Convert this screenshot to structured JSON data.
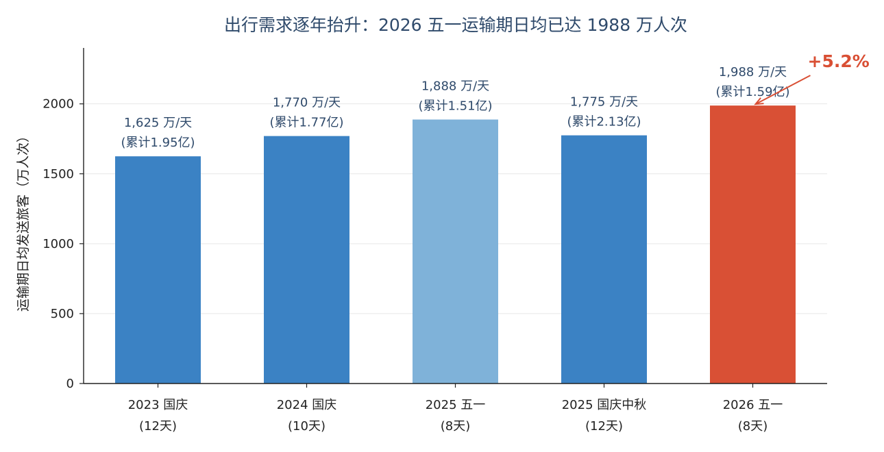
{
  "chart_data": {
    "type": "bar",
    "title": "出行需求逐年抬升：2026 五一运输期日均已达 1988 万人次",
    "ylabel": "运输期日均发送旅客（万人次）",
    "xlabel": "",
    "ylim": [
      0,
      2400
    ],
    "yticks": [
      "0",
      "500",
      "1000",
      "1500",
      "2000"
    ],
    "ytick_values": [
      0,
      500,
      1000,
      1500,
      2000
    ],
    "grid": true,
    "categories": [
      {
        "line1": "2023 国庆",
        "line2": "(12天)"
      },
      {
        "line1": "2024 国庆",
        "line2": "(10天)"
      },
      {
        "line1": "2025 五一",
        "line2": "(8天)"
      },
      {
        "line1": "2025 国庆中秋",
        "line2": "(12天)"
      },
      {
        "line1": "2026 五一",
        "line2": "(8天)"
      }
    ],
    "values": [
      1625,
      1770,
      1888,
      1775,
      1988
    ],
    "labels": [
      {
        "daily": "1,625 万/天",
        "total": "(累计1.95亿)"
      },
      {
        "daily": "1,770 万/天",
        "total": "(累计1.77亿)"
      },
      {
        "daily": "1,888 万/天",
        "total": "(累计1.51亿)"
      },
      {
        "daily": "1,775 万/天",
        "total": "(累计2.13亿)"
      },
      {
        "daily": "1,988 万/天",
        "total": "(累计1.59亿)"
      }
    ],
    "colors": [
      "#3b82c4",
      "#3b82c4",
      "#7fb2d9",
      "#3b82c4",
      "#d95035"
    ],
    "annotation": {
      "text": "+5.2%",
      "color": "#d94f34",
      "target_index": 4
    }
  }
}
